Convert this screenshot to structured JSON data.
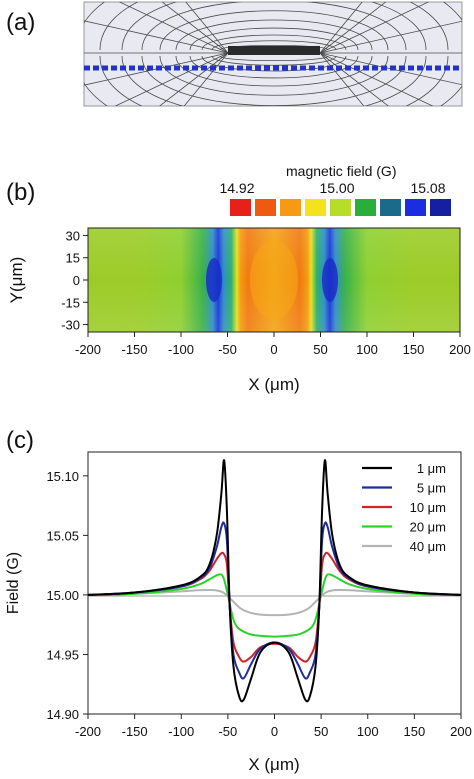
{
  "panels": {
    "a": {
      "label": "(a)"
    },
    "b": {
      "label": "(b)",
      "colorbar_title": "magnetic field (G)",
      "colorbar_ticks": [
        "14.92",
        "15.00",
        "15.08"
      ],
      "colorbar_colors": [
        "#e8201a",
        "#f05a10",
        "#f59a12",
        "#f3e21c",
        "#b8dc2a",
        "#2aae3a",
        "#1a6a8a",
        "#1a2ee0",
        "#1420a0"
      ],
      "xlabel": "X (μm)",
      "ylabel": "Y(μm)",
      "xticks": [
        "-200",
        "-150",
        "-100",
        "-50",
        "0",
        "50",
        "100",
        "150",
        "200"
      ],
      "yticks": [
        "30",
        "15",
        "0",
        "-15",
        "-30"
      ]
    },
    "c": {
      "label": "(c)"
    }
  },
  "chart_data": [
    {
      "type": "heatmap",
      "panel": "b",
      "title": "",
      "xlabel": "X (μm)",
      "ylabel": "Y(μm)",
      "xlim": [
        -200,
        200
      ],
      "ylim": [
        -35,
        35
      ],
      "colorbar": {
        "title": "magnetic field (G)",
        "ticks": [
          14.92,
          15.0,
          15.08
        ]
      },
      "features": [
        {
          "kind": "high",
          "x_range": [
            -45,
            45
          ]
        },
        {
          "kind": "low",
          "x": -60
        },
        {
          "kind": "low",
          "x": 60
        }
      ]
    },
    {
      "type": "line",
      "panel": "c",
      "xlabel": "X (μm)",
      "ylabel": "Field (G)",
      "xlim": [
        -200,
        200
      ],
      "ylim": [
        14.9,
        15.12
      ],
      "xticks": [
        "-200",
        "-150",
        "-100",
        "-50",
        "0",
        "50",
        "100",
        "150",
        "200"
      ],
      "yticks": [
        "15.10",
        "15.05",
        "15.00",
        "14.95",
        "14.90"
      ],
      "legend_position": "top-right",
      "series": [
        {
          "name": "1 μm",
          "color": "#000000",
          "x": [
            -200,
            -150,
            -100,
            -80,
            -70,
            -62,
            -57,
            -54,
            -51,
            -48,
            -44,
            -38,
            -33,
            -25,
            -15,
            0,
            15,
            25,
            33,
            38,
            44,
            48,
            51,
            54,
            57,
            62,
            70,
            80,
            100,
            150,
            200
          ],
          "y": [
            15.0,
            15.002,
            15.008,
            15.015,
            15.025,
            15.05,
            15.085,
            15.113,
            15.07,
            14.99,
            14.94,
            14.915,
            14.912,
            14.93,
            14.952,
            14.96,
            14.952,
            14.93,
            14.912,
            14.915,
            14.94,
            14.99,
            15.07,
            15.113,
            15.085,
            15.05,
            15.025,
            15.015,
            15.008,
            15.002,
            15.0
          ]
        },
        {
          "name": "5 μm",
          "color": "#1e2c9e",
          "x": [
            -200,
            -150,
            -100,
            -80,
            -70,
            -62,
            -57,
            -54,
            -51,
            -48,
            -44,
            -38,
            -33,
            -25,
            -15,
            0,
            15,
            25,
            33,
            38,
            44,
            48,
            51,
            54,
            57,
            62,
            70,
            80,
            100,
            150,
            200
          ],
          "y": [
            15.0,
            15.002,
            15.007,
            15.014,
            15.022,
            15.04,
            15.057,
            15.06,
            15.045,
            14.99,
            14.95,
            14.935,
            14.93,
            14.942,
            14.955,
            14.96,
            14.955,
            14.942,
            14.93,
            14.935,
            14.95,
            14.99,
            15.045,
            15.06,
            15.057,
            15.04,
            15.022,
            15.014,
            15.007,
            15.002,
            15.0
          ]
        },
        {
          "name": "10 μm",
          "color": "#d0242a",
          "x": [
            -200,
            -150,
            -100,
            -80,
            -70,
            -62,
            -57,
            -54,
            -51,
            -48,
            -44,
            -38,
            -33,
            -25,
            -15,
            0,
            15,
            25,
            33,
            38,
            44,
            48,
            51,
            54,
            57,
            62,
            70,
            80,
            100,
            150,
            200
          ],
          "y": [
            15.0,
            15.002,
            15.007,
            15.013,
            15.02,
            15.03,
            15.035,
            15.034,
            15.025,
            14.99,
            14.96,
            14.948,
            14.944,
            14.948,
            14.956,
            14.959,
            14.956,
            14.948,
            14.944,
            14.948,
            14.96,
            14.99,
            15.025,
            15.034,
            15.035,
            15.03,
            15.02,
            15.013,
            15.007,
            15.002,
            15.0
          ]
        },
        {
          "name": "20 μm",
          "color": "#2ad22a",
          "x": [
            -200,
            -150,
            -100,
            -80,
            -70,
            -60,
            -55,
            -50,
            -45,
            -40,
            -30,
            -20,
            0,
            20,
            30,
            40,
            45,
            50,
            55,
            60,
            70,
            80,
            100,
            150,
            200
          ],
          "y": [
            15.0,
            15.001,
            15.005,
            15.009,
            15.013,
            15.017,
            15.015,
            15.0,
            14.982,
            14.973,
            14.968,
            14.966,
            14.965,
            14.966,
            14.968,
            14.973,
            14.982,
            15.0,
            15.015,
            15.017,
            15.013,
            15.009,
            15.005,
            15.001,
            15.0
          ]
        },
        {
          "name": "40 μm",
          "color": "#b4b4b4",
          "x": [
            -200,
            -150,
            -100,
            -80,
            -65,
            -55,
            -45,
            -35,
            -20,
            0,
            20,
            35,
            45,
            55,
            65,
            80,
            100,
            150,
            200
          ],
          "y": [
            15.0,
            15.001,
            15.003,
            15.004,
            15.004,
            15.002,
            14.995,
            14.988,
            14.984,
            14.983,
            14.984,
            14.988,
            14.995,
            15.002,
            15.004,
            15.004,
            15.003,
            15.001,
            15.0
          ]
        }
      ]
    }
  ]
}
